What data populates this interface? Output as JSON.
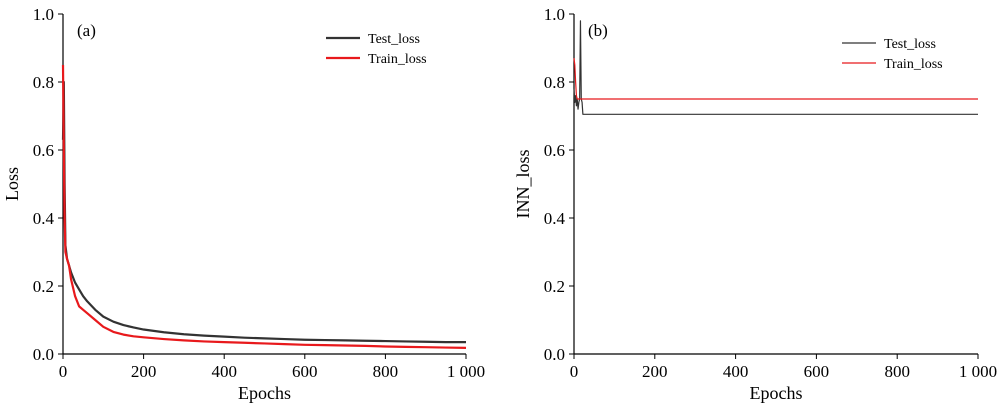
{
  "chart_data": [
    {
      "type": "line",
      "panel_label": "(a)",
      "xlabel": "Epochs",
      "ylabel": "Loss",
      "xlim": [
        0,
        1000
      ],
      "ylim": [
        0,
        1.0
      ],
      "xticks": [
        0,
        200,
        400,
        600,
        800,
        1000
      ],
      "xtick_labels": [
        "0",
        "200",
        "400",
        "600",
        "800",
        "1 000"
      ],
      "yticks": [
        0,
        0.2,
        0.4,
        0.6,
        0.8,
        1.0
      ],
      "ytick_labels": [
        "0.0",
        "0.2",
        "0.4",
        "0.6",
        "0.8",
        "1.0"
      ],
      "legend_position": "top-right",
      "series": [
        {
          "name": "Test_loss",
          "color": "#333333",
          "x": [
            0,
            2,
            4,
            6,
            10,
            15,
            20,
            30,
            40,
            50,
            60,
            80,
            100,
            125,
            150,
            175,
            200,
            250,
            300,
            350,
            400,
            450,
            500,
            550,
            600,
            650,
            700,
            750,
            800,
            850,
            900,
            950,
            1000
          ],
          "y": [
            0.63,
            0.8,
            0.5,
            0.32,
            0.28,
            0.26,
            0.24,
            0.21,
            0.19,
            0.17,
            0.155,
            0.13,
            0.11,
            0.095,
            0.085,
            0.078,
            0.072,
            0.064,
            0.058,
            0.054,
            0.051,
            0.048,
            0.046,
            0.044,
            0.042,
            0.041,
            0.04,
            0.039,
            0.038,
            0.037,
            0.036,
            0.035,
            0.035
          ]
        },
        {
          "name": "Train_loss",
          "color": "#e8191c",
          "x": [
            0,
            2,
            4,
            6,
            10,
            15,
            20,
            30,
            40,
            50,
            60,
            80,
            100,
            125,
            150,
            175,
            200,
            250,
            300,
            350,
            400,
            450,
            500,
            550,
            600,
            650,
            700,
            750,
            800,
            850,
            900,
            950,
            1000
          ],
          "y": [
            0.85,
            0.6,
            0.4,
            0.3,
            0.28,
            0.26,
            0.22,
            0.17,
            0.14,
            0.13,
            0.12,
            0.1,
            0.08,
            0.065,
            0.057,
            0.052,
            0.049,
            0.044,
            0.04,
            0.037,
            0.035,
            0.033,
            0.031,
            0.029,
            0.027,
            0.026,
            0.025,
            0.024,
            0.022,
            0.021,
            0.02,
            0.019,
            0.018
          ]
        }
      ]
    },
    {
      "type": "line",
      "panel_label": "(b)",
      "xlabel": "Epochs",
      "ylabel": "INN_loss",
      "xlim": [
        0,
        1000
      ],
      "ylim": [
        0,
        1.0
      ],
      "xticks": [
        0,
        200,
        400,
        600,
        800,
        1000
      ],
      "xtick_labels": [
        "0",
        "200",
        "400",
        "600",
        "800",
        "1 000"
      ],
      "yticks": [
        0,
        0.2,
        0.4,
        0.6,
        0.8,
        1.0
      ],
      "ytick_labels": [
        "0.0",
        "0.2",
        "0.4",
        "0.6",
        "0.8",
        "1.0"
      ],
      "legend_position": "top-right",
      "series": [
        {
          "name": "Test_loss",
          "color": "#333333",
          "x": [
            0,
            2,
            4,
            6,
            8,
            10,
            12,
            14,
            16,
            18,
            20,
            22,
            1000
          ],
          "y": [
            0.78,
            0.74,
            0.76,
            0.73,
            0.75,
            0.72,
            0.74,
            0.75,
            0.98,
            0.75,
            0.74,
            0.705,
            0.705
          ]
        },
        {
          "name": "Train_loss",
          "color": "#e8191c",
          "x": [
            0,
            2,
            4,
            6,
            8,
            10,
            1000
          ],
          "y": [
            0.87,
            0.85,
            0.8,
            0.76,
            0.75,
            0.75,
            0.75
          ]
        }
      ]
    }
  ]
}
